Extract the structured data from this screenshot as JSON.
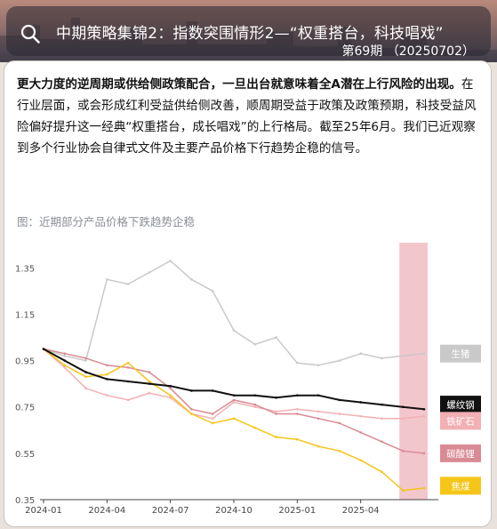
{
  "header": {
    "title": "中期策略集锦2：指数突围情形2—“权重搭台，科技唱戏”",
    "subtitle": "第69期 （20250702）"
  },
  "body": {
    "bold_text": "更大力度的逆周期或供给侧政策配合，一旦出台就意味着全A潜在上行风险的出现。",
    "normal_text": "在行业层面，或会形成红利受益供给侧改善，顺周期受益于政策及政策预期，科技受益风险偏好提升这一经典“权重搭台，成长唱戏”的上行格局。截至25年6月。我们已近观察到多个行业协会自律式文件及主要产品价格下行趋势企稳的信号。"
  },
  "figure": {
    "caption": "图：近期部分产品价格下跌趋势企稳"
  },
  "colors": {
    "shade": "#f3c6cc",
    "生猪": "#c9c9c9",
    "螺纹钢": "#111111",
    "铁矿石": "#f2b0b4",
    "碳酸锂": "#d98a94",
    "焦煤": "#f5c518"
  },
  "chart_data": {
    "type": "line",
    "title": "",
    "xlabel": "",
    "ylabel": "",
    "x_ticks": [
      "2024-01",
      "2024-04",
      "2024-07",
      "2024-10",
      "2025-01",
      "2025-04"
    ],
    "y_ticks": [
      "0.35",
      "0.55",
      "0.75",
      "0.95",
      "1.15",
      "1.35"
    ],
    "ylim": [
      0.35,
      1.42
    ],
    "shaded_region": {
      "x_start": "2025-06",
      "x_end": "2025-07"
    },
    "x": [
      "2024-01",
      "2024-02",
      "2024-03",
      "2024-04",
      "2024-05",
      "2024-06",
      "2024-07",
      "2024-08",
      "2024-09",
      "2024-10",
      "2024-11",
      "2024-12",
      "2025-01",
      "2025-02",
      "2025-03",
      "2025-04",
      "2025-05",
      "2025-06",
      "2025-07"
    ],
    "series": [
      {
        "name": "生猪",
        "values": [
          1.0,
          0.97,
          0.95,
          1.3,
          1.28,
          1.33,
          1.38,
          1.3,
          1.25,
          1.08,
          1.02,
          1.05,
          0.94,
          0.93,
          0.95,
          0.98,
          0.96,
          0.97,
          0.98
        ]
      },
      {
        "name": "螺纹钢",
        "values": [
          1.0,
          0.95,
          0.9,
          0.87,
          0.86,
          0.85,
          0.84,
          0.82,
          0.82,
          0.8,
          0.8,
          0.79,
          0.8,
          0.8,
          0.78,
          0.77,
          0.76,
          0.75,
          0.74
        ]
      },
      {
        "name": "铁矿石",
        "values": [
          1.0,
          0.92,
          0.83,
          0.8,
          0.78,
          0.81,
          0.79,
          0.72,
          0.7,
          0.77,
          0.75,
          0.73,
          0.74,
          0.73,
          0.72,
          0.71,
          0.7,
          0.7,
          0.71
        ]
      },
      {
        "name": "碳酸锂",
        "values": [
          1.0,
          0.98,
          0.96,
          0.93,
          0.92,
          0.9,
          0.83,
          0.74,
          0.72,
          0.78,
          0.76,
          0.72,
          0.72,
          0.7,
          0.68,
          0.64,
          0.6,
          0.56,
          0.55
        ]
      },
      {
        "name": "焦煤",
        "values": [
          1.0,
          0.93,
          0.88,
          0.89,
          0.94,
          0.86,
          0.8,
          0.72,
          0.68,
          0.7,
          0.66,
          0.62,
          0.61,
          0.58,
          0.56,
          0.52,
          0.47,
          0.39,
          0.4
        ]
      }
    ]
  }
}
